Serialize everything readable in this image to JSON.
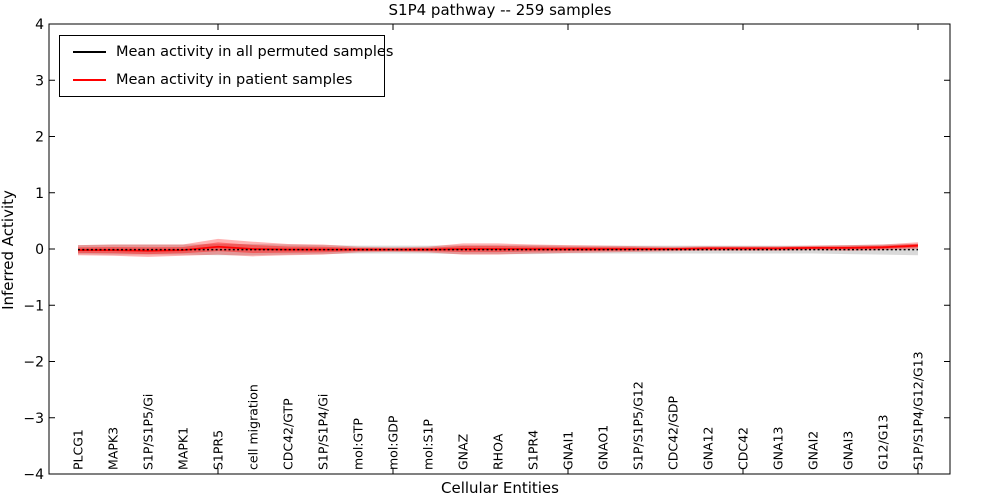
{
  "chart_data": {
    "type": "line",
    "title": "S1P4 pathway -- 259 samples",
    "xlabel": "Cellular Entities",
    "ylabel": "Inferred Activity",
    "ylim": [
      -4,
      4
    ],
    "yticks": [
      4,
      3,
      2,
      1,
      0,
      -1,
      -2,
      -3,
      -4
    ],
    "xtick_indices": [
      4,
      9,
      14,
      19,
      24
    ],
    "grid": false,
    "legend_position": "upper left",
    "categories": [
      "PLCG1",
      "MAPK3",
      "S1P/S1P5/Gi",
      "MAPK1",
      "S1PR5",
      "cell migration",
      "CDC42/GTP",
      "S1P/S1P4/Gi",
      "mol:GTP",
      "mol:GDP",
      "mol:S1P",
      "GNAZ",
      "RHOA",
      "S1PR4",
      "GNAI1",
      "GNAO1",
      "S1P/S1P5/G12",
      "CDC42/GDP",
      "GNA12",
      "CDC42",
      "GNA13",
      "GNAI2",
      "GNAI3",
      "G12/G13",
      "S1P/S1P4/G12/G13"
    ],
    "series": [
      {
        "name": "Mean activity in all permuted samples",
        "color": "#000000",
        "line_style": "dotted",
        "band_color": "rgba(0,0,0,0.15)",
        "mean": [
          -0.01,
          -0.01,
          -0.01,
          -0.01,
          -0.01,
          -0.01,
          -0.01,
          -0.01,
          -0.01,
          -0.01,
          -0.01,
          -0.01,
          -0.01,
          -0.01,
          -0.01,
          -0.01,
          -0.01,
          -0.01,
          -0.01,
          -0.01,
          -0.01,
          -0.01,
          -0.01,
          -0.01,
          -0.01
        ],
        "std": [
          0.08,
          0.09,
          0.09,
          0.09,
          0.1,
          0.1,
          0.09,
          0.08,
          0.07,
          0.07,
          0.07,
          0.08,
          0.08,
          0.08,
          0.07,
          0.07,
          0.07,
          0.07,
          0.07,
          0.07,
          0.07,
          0.07,
          0.08,
          0.09,
          0.1
        ]
      },
      {
        "name": "Mean activity in patient samples",
        "color": "#ff0000",
        "line_style": "solid",
        "band_color": "rgba(255,0,0,0.30)",
        "mean": [
          -0.02,
          -0.02,
          -0.03,
          -0.02,
          0.04,
          0.0,
          -0.01,
          -0.01,
          -0.01,
          -0.01,
          -0.01,
          0.0,
          0.0,
          0.0,
          0.0,
          0.0,
          0.0,
          0.0,
          0.01,
          0.01,
          0.01,
          0.02,
          0.02,
          0.03,
          0.06
        ],
        "std": [
          0.09,
          0.1,
          0.11,
          0.1,
          0.14,
          0.13,
          0.1,
          0.09,
          0.05,
          0.04,
          0.05,
          0.1,
          0.1,
          0.08,
          0.07,
          0.06,
          0.05,
          0.04,
          0.04,
          0.04,
          0.04,
          0.04,
          0.05,
          0.05,
          0.06
        ]
      }
    ]
  }
}
